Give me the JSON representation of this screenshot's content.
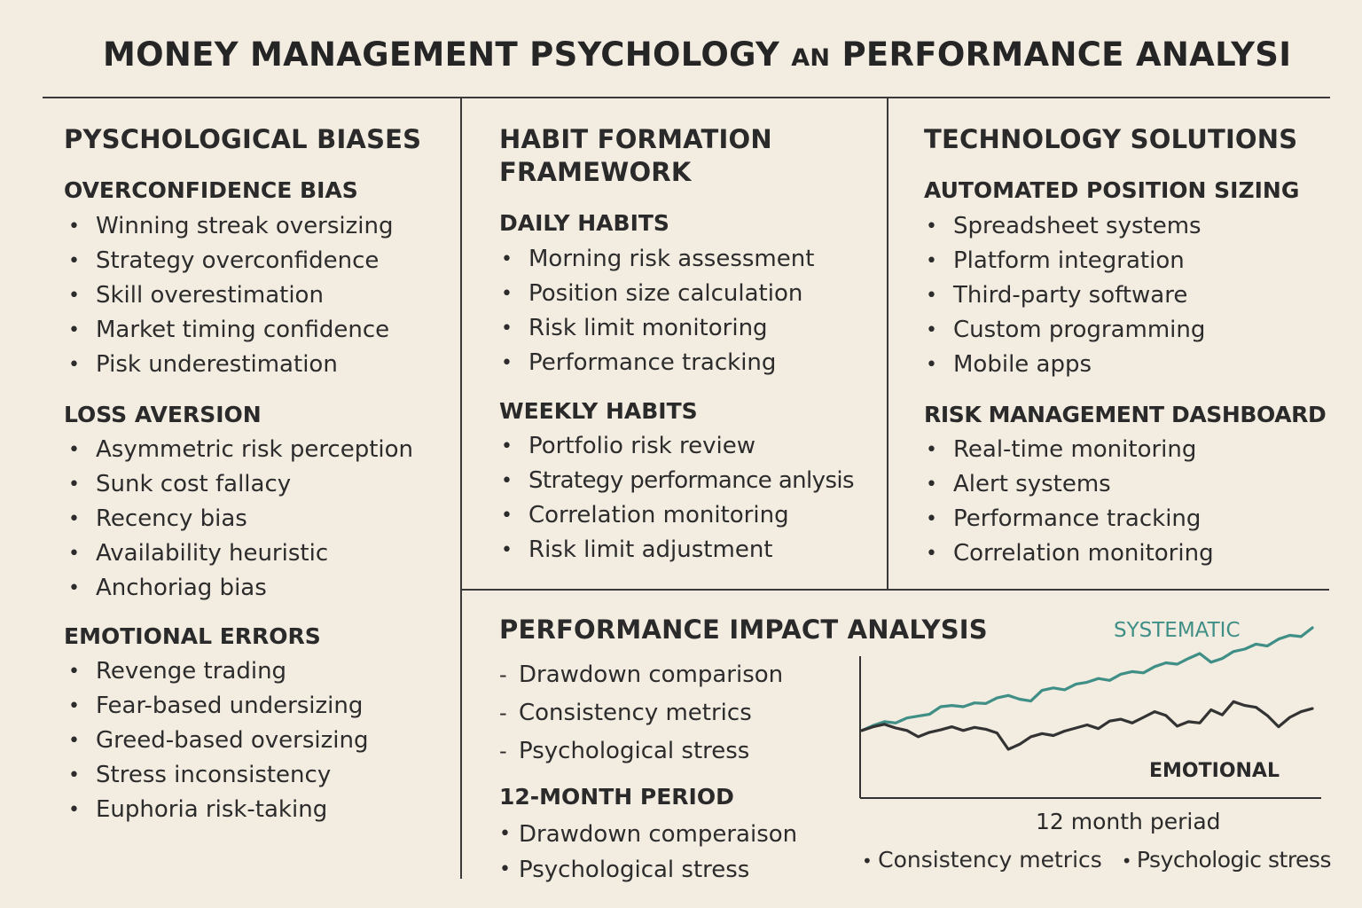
{
  "title": {
    "main_a": "MONEY MANAGEMENT PSYCHOLOGY ",
    "small": "AN",
    "main_b": " PERFORMANCE ANALYSI"
  },
  "col1": {
    "heading": "PYSCHOLOGICAL BIASES",
    "sections": [
      {
        "heading": "OVERCONFIDENCE BIAS",
        "items": [
          "Winning streak oversizing",
          "Strategy overconfidence",
          "Skill overestimation",
          "Market timing confidence",
          "Pisk underestimation"
        ]
      },
      {
        "heading": "LOSS AVERSION",
        "items": [
          "Asymmetric risk perception",
          "Sunk cost fallacy",
          "Recency bias",
          "Availability heuristic",
          "Anchoriag bias"
        ]
      },
      {
        "heading": "EMOTIONAL ERRORS",
        "items": [
          "Revenge trading",
          "Fear-based undersizing",
          "Greed-based oversizing",
          "Stress inconsistency",
          "Euphoria risk-taking"
        ]
      }
    ]
  },
  "col2": {
    "heading_line1": "HABIT FORMATION",
    "heading_line2": "FRAMEWORK",
    "sections": [
      {
        "heading": "DAILY HABITS",
        "items": [
          "Morning risk assessment",
          "Position size calculation",
          "Risk limit monitoring",
          "Performance tracking"
        ]
      },
      {
        "heading": "WEEKLY HABITS",
        "items": [
          "Portfolio risk review",
          "Strategy performance anlysis",
          "Correlation monitoring",
          "Risk limit adjustment"
        ]
      }
    ]
  },
  "col3": {
    "heading": "TECHNOLOGY SOLUTIONS",
    "sections": [
      {
        "heading": "AUTOMATED POSITION SIZING",
        "items": [
          "Spreadsheet systems",
          "Platform integration",
          "Third-party software",
          "Custom programming",
          "Mobile apps"
        ]
      },
      {
        "heading": "RISK MANAGEMENT DASHBOARD",
        "items": [
          "Real-time monitoring",
          "Alert systems",
          "Performance tracking",
          "Correlation monitoring"
        ]
      }
    ]
  },
  "impact": {
    "heading": "PERFORMANCE IMPACT ANALYSIS",
    "dash_items": [
      "Drawdown comparison",
      "Consistency metrics",
      "Psychological stress"
    ],
    "period_heading": "12-MONTH PERIOD",
    "period_items": [
      "Drawdown comperaison",
      "Psychological stress"
    ]
  },
  "chart_data": {
    "type": "line",
    "xlabel": "12 month periad",
    "footer_items": [
      "Consistency metrics",
      "Psychologic stress"
    ],
    "colors": {
      "systematic": "#3f8f86",
      "emotional": "#333333"
    },
    "series": [
      {
        "name": "SYSTEMATIC",
        "values": [
          0.0,
          0.8,
          1.4,
          1.2,
          2.0,
          2.3,
          2.6,
          3.8,
          4.0,
          3.8,
          4.4,
          4.3,
          5.2,
          5.6,
          5.0,
          4.7,
          6.4,
          6.8,
          6.5,
          7.4,
          7.7,
          8.3,
          8.0,
          9.0,
          9.4,
          9.2,
          10.2,
          10.8,
          10.6,
          11.5,
          12.3,
          10.9,
          11.5,
          12.6,
          13.0,
          13.8,
          13.5,
          14.6,
          15.2,
          15.0,
          16.4
        ]
      },
      {
        "name": "EMOTIONAL",
        "values": [
          0.0,
          0.6,
          1.0,
          0.4,
          0.0,
          -1.0,
          -0.3,
          0.1,
          0.6,
          0.0,
          0.5,
          0.2,
          -0.4,
          -3.0,
          -2.2,
          -1.0,
          -0.5,
          -0.8,
          -0.1,
          0.4,
          0.9,
          0.3,
          1.5,
          1.8,
          1.2,
          2.1,
          3.0,
          2.4,
          0.7,
          1.4,
          1.2,
          3.3,
          2.5,
          4.6,
          4.0,
          3.7,
          2.4,
          0.6,
          2.1,
          3.0,
          3.5
        ]
      }
    ]
  }
}
